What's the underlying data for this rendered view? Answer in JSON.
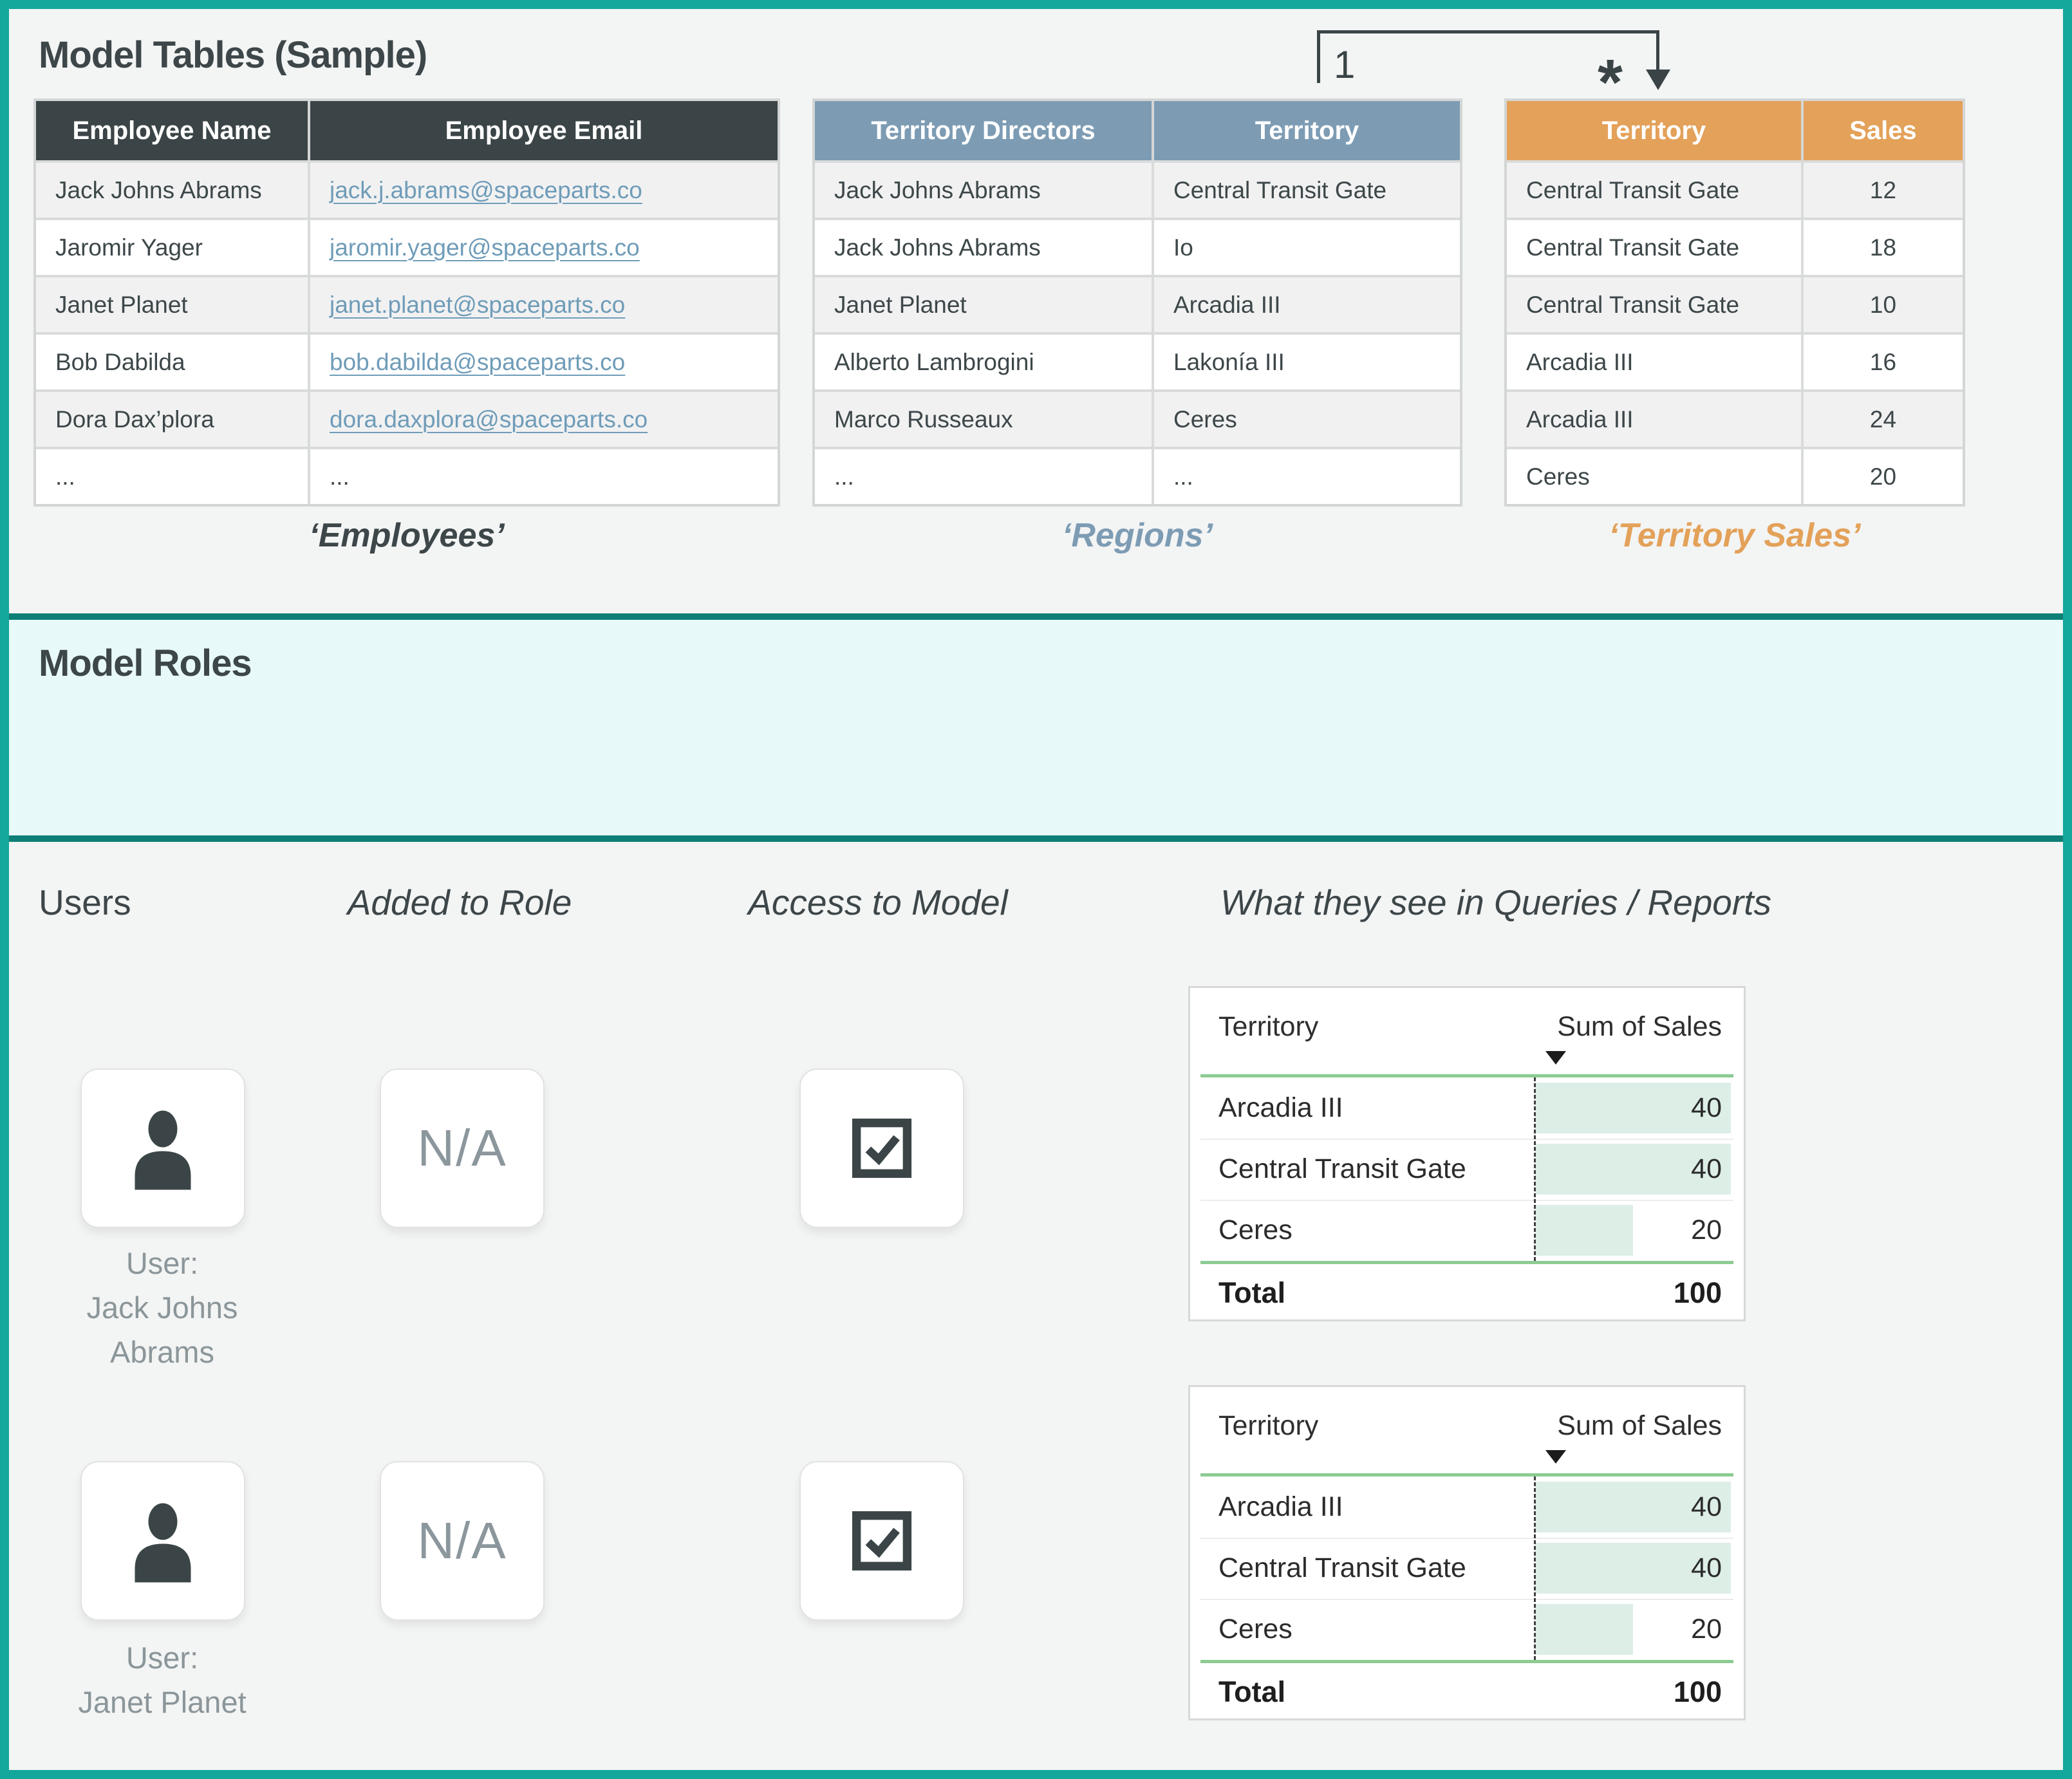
{
  "model_tables": {
    "title": "Model Tables (Sample)",
    "relationship": {
      "one_label": "1",
      "many_label": "*"
    },
    "employees": {
      "caption": "‘Employees’",
      "col1": "Employee Name",
      "col2": "Employee Email",
      "rows": [
        {
          "c1": "Jack Johns Abrams",
          "c2": "jack.j.abrams@spaceparts.co"
        },
        {
          "c1": "Jaromir Yager",
          "c2": "jaromir.yager@spaceparts.co"
        },
        {
          "c1": "Janet Planet",
          "c2": "janet.planet@spaceparts.co"
        },
        {
          "c1": "Bob Dabilda",
          "c2": "bob.dabilda@spaceparts.co"
        },
        {
          "c1": "Dora Dax’plora",
          "c2": "dora.daxplora@spaceparts.co"
        },
        {
          "c1": "...",
          "c2": "..."
        }
      ]
    },
    "regions": {
      "caption": "‘Regions’",
      "col1": "Territory Directors",
      "col2": "Territory",
      "rows": [
        {
          "c1": "Jack Johns Abrams",
          "c2": "Central Transit Gate"
        },
        {
          "c1": "Jack Johns Abrams",
          "c2": "Io"
        },
        {
          "c1": "Janet Planet",
          "c2": "Arcadia III"
        },
        {
          "c1": "Alberto Lambrogini",
          "c2": "Lakonía III"
        },
        {
          "c1": "Marco Russeaux",
          "c2": "Ceres"
        },
        {
          "c1": "...",
          "c2": "..."
        }
      ]
    },
    "territory_sales": {
      "caption": "‘Territory Sales’",
      "col1": "Territory",
      "col2": "Sales",
      "rows": [
        {
          "c1": "Central Transit Gate",
          "c2": 12
        },
        {
          "c1": "Central Transit Gate",
          "c2": 18
        },
        {
          "c1": "Central Transit Gate",
          "c2": 10
        },
        {
          "c1": "Arcadia III",
          "c2": 16
        },
        {
          "c1": "Arcadia III",
          "c2": 24
        },
        {
          "c1": "Ceres",
          "c2": 20
        }
      ]
    }
  },
  "model_roles": {
    "title": "Model Roles"
  },
  "users_section": {
    "col_users": "Users",
    "col_added": "Added to Role",
    "col_access": "Access to Model",
    "col_reports": "What they see in Queries / Reports",
    "na_label": "N/A",
    "users": [
      {
        "label_lines": [
          "User:",
          "Jack Johns",
          "Abrams"
        ],
        "report": {
          "col1": "Territory",
          "col2": "Sum of Sales",
          "rows": [
            {
              "territory": "Arcadia III",
              "value": 40
            },
            {
              "territory": "Central Transit Gate",
              "value": 40
            },
            {
              "territory": "Ceres",
              "value": 20
            }
          ],
          "max_value": 40,
          "total_label": "Total",
          "total_value": 100
        }
      },
      {
        "label_lines": [
          "User:",
          "Janet Planet"
        ],
        "report": {
          "col1": "Territory",
          "col2": "Sum of Sales",
          "rows": [
            {
              "territory": "Arcadia III",
              "value": 40
            },
            {
              "territory": "Central Transit Gate",
              "value": 40
            },
            {
              "territory": "Ceres",
              "value": 20
            }
          ],
          "max_value": 40,
          "total_label": "Total",
          "total_value": 100
        }
      }
    ]
  },
  "colors": {
    "accent_teal": "#14a79c",
    "section_divider_teal": "#0c7f76",
    "roles_background": "#e7f9f8",
    "employees_header": "#3b4547",
    "regions_header": "#7d9cb4",
    "sales_header": "#e3a159",
    "link_blue": "#6f9cb8",
    "report_green_rule": "#8ccb92",
    "report_databar_mint": "#ddeee7"
  }
}
